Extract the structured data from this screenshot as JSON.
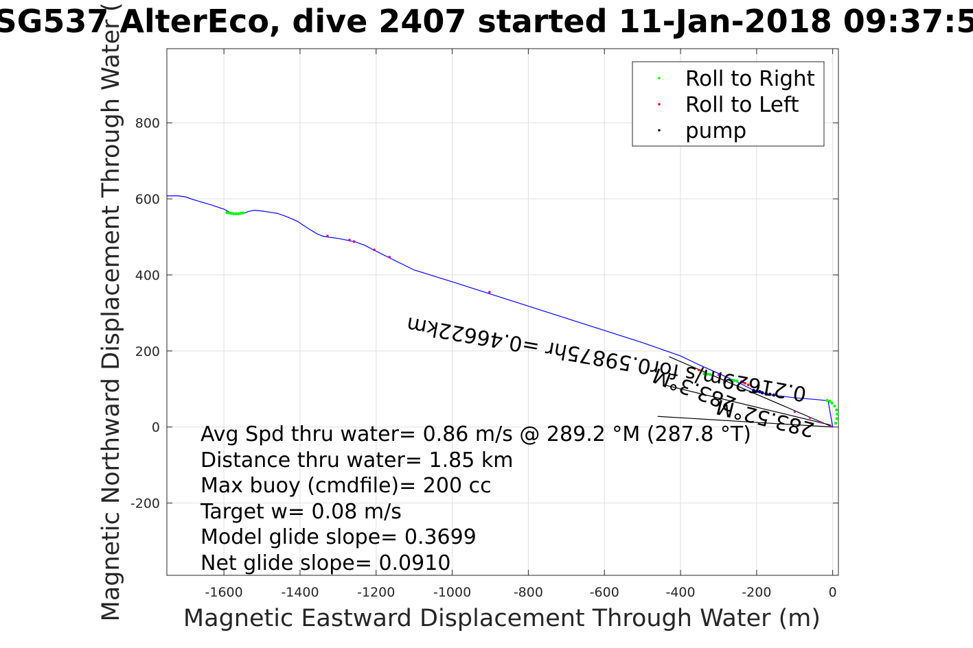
{
  "chart_data": {
    "type": "line",
    "title": "SG537 AlterEco, dive 2407 started 11-Jan-2018 09:37:5",
    "xlabel": "Magnetic Eastward Displacement Through Water (m)",
    "ylabel": "Magnetic Northward Displacement Through Water (",
    "xlim": [
      -1750,
      15
    ],
    "ylim": [
      -390,
      995
    ],
    "xticks": [
      -1600,
      -1400,
      -1200,
      -1000,
      -800,
      -600,
      -400,
      -200,
      0
    ],
    "xtick_labels": [
      "-1600",
      "-1400",
      "-1200",
      "-1000",
      "-800",
      "-600",
      "-400",
      "-200",
      "0"
    ],
    "yticks": [
      -200,
      0,
      200,
      400,
      600,
      800
    ],
    "ytick_labels": [
      "-200",
      "0",
      "200",
      "400",
      "600",
      "800"
    ],
    "grid": true,
    "legend_position": "top-right",
    "colors": {
      "track": "#0000ff",
      "roll_right": "#00ff00",
      "roll_left": "#ff0000",
      "pump": "#000000",
      "mixed_marker": "#cc00cc",
      "navy_marker": "#000080"
    },
    "legend": [
      "Roll to Right",
      "Roll to Left",
      "pump"
    ],
    "track": {
      "x": [
        -1750,
        -1720,
        -1700,
        -1680,
        -1660,
        -1630,
        -1600,
        -1585,
        -1570,
        -1558,
        -1545,
        -1535,
        -1520,
        -1500,
        -1480,
        -1460,
        -1440,
        -1425,
        -1405,
        -1395,
        -1375,
        -1355,
        -1340,
        -1330,
        -1300,
        -1270,
        -1255,
        -1230,
        -1205,
        -1185,
        -1165,
        -1100,
        -1000,
        -900,
        -800,
        -700,
        -600,
        -500,
        -400,
        -350,
        -300,
        -260,
        -230,
        -205,
        -175,
        -150,
        -100,
        -40,
        -12,
        0
      ],
      "y": [
        608,
        608,
        605,
        598,
        592,
        583,
        573,
        565,
        562,
        561,
        563,
        567,
        570,
        568,
        565,
        562,
        555,
        549,
        540,
        533,
        520,
        508,
        502,
        500,
        496,
        490,
        487,
        478,
        465,
        455,
        445,
        413,
        382,
        350,
        318,
        286,
        254,
        222,
        187,
        163,
        141,
        123,
        108,
        95,
        86,
        83,
        77,
        72,
        69,
        0
      ]
    },
    "roll_right": {
      "x": [
        -1592,
        -1586,
        -1580,
        -1574,
        -1568,
        -1562,
        -1556,
        -1550,
        -338,
        -330,
        -322,
        -268,
        -260,
        -252,
        -15,
        -8,
        -2,
        5,
        10,
        12,
        11,
        8
      ],
      "y": [
        564,
        563,
        562,
        561,
        561,
        561,
        562,
        563,
        140,
        139,
        138,
        123,
        122,
        121,
        70,
        68,
        63,
        55,
        45,
        34,
        22,
        10
      ]
    },
    "roll_left": {
      "x": [
        -1328,
        -1270,
        -1258,
        -1205,
        -1165,
        -902,
        -352,
        -298,
        -238,
        -230,
        -222
      ],
      "y": [
        502,
        492,
        488,
        466,
        447,
        355,
        150,
        136,
        119,
        115,
        111
      ]
    },
    "pump": {
      "x": [
        -208,
        -200,
        -192,
        -185,
        -175,
        -165,
        -155
      ],
      "y": [
        96,
        94,
        93,
        90,
        88,
        86,
        84
      ]
    },
    "mixed_markers": {
      "x": [
        -1328,
        -1270,
        -1258,
        -1205,
        -1165,
        -902,
        -300,
        -240,
        -235,
        -100,
        -60,
        -30,
        -5
      ],
      "y": [
        503,
        492,
        487,
        466,
        447,
        355,
        137,
        120,
        117,
        40,
        24,
        12,
        2
      ]
    },
    "vector_lines": [
      {
        "x": [
          -430,
          0
        ],
        "y": [
          185,
          0
        ]
      },
      {
        "x": [
          -440,
          -5
        ],
        "y": [
          110,
          5
        ]
      },
      {
        "x": [
          -460,
          0
        ],
        "y": [
          28,
          0
        ]
      }
    ],
    "annotations": [
      "Avg Spd thru water=  0.86 m/s @ 289.2 °M (287.8 °T)",
      "Distance thru water=  1.85 km",
      "Max buoy (cmdfile)= 200 cc",
      "Target w= 0.08 m/s",
      "Model glide slope= 0.3699",
      "Net glide slope= 0.0910"
    ],
    "rotated_labels": [
      "0.21629m/s for0.59875hr =0.46622km",
      "283.3°M",
      "283.52°M"
    ]
  }
}
